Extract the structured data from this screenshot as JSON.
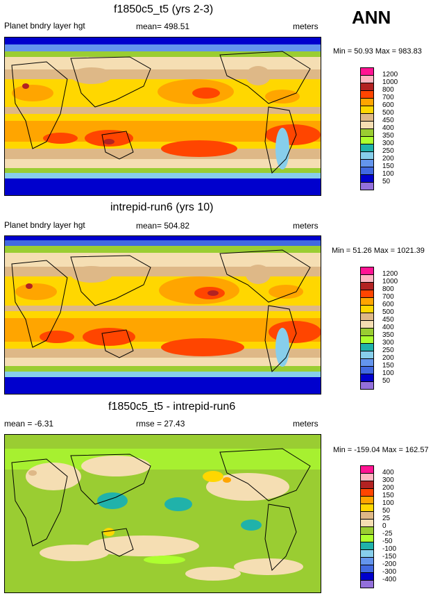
{
  "season": "ANN",
  "panels": [
    {
      "title": "f1850c5_t5 (yrs 2-3)",
      "left_label": "Planet bndry layer hgt",
      "center_label": "mean= 498.51",
      "right_label": "meters",
      "minmax": "Min =  50.93 Max = 983.83",
      "legend_levels": [
        "1200",
        "1000",
        "800",
        "700",
        "600",
        "500",
        "450",
        "400",
        "350",
        "300",
        "250",
        "200",
        "150",
        "100",
        "50"
      ],
      "legend_colors": [
        "#ff1493",
        "#ffb6c1",
        "#b22222",
        "#ff4500",
        "#ffa500",
        "#ffd700",
        "#deb887",
        "#f5deb3",
        "#9acd32",
        "#adff2f",
        "#20b2aa",
        "#87ceeb",
        "#6495ed",
        "#4169e1",
        "#0000cd",
        "#9370db"
      ]
    },
    {
      "title": "intrepid-run6 (yrs 10)",
      "left_label": "Planet bndry layer hgt",
      "center_label": "mean= 504.82",
      "right_label": "meters",
      "minmax": "Min =  51.26 Max = 1021.39",
      "legend_levels": [
        "1200",
        "1000",
        "800",
        "700",
        "600",
        "500",
        "450",
        "400",
        "350",
        "300",
        "250",
        "200",
        "150",
        "100",
        "50"
      ],
      "legend_colors": [
        "#ff1493",
        "#ffb6c1",
        "#b22222",
        "#ff4500",
        "#ffa500",
        "#ffd700",
        "#deb887",
        "#f5deb3",
        "#9acd32",
        "#adff2f",
        "#20b2aa",
        "#87ceeb",
        "#6495ed",
        "#4169e1",
        "#0000cd",
        "#9370db"
      ]
    },
    {
      "title": "f1850c5_t5 - intrepid-run6",
      "left_label": "mean =  -6.31",
      "center_label": "rmse =  27.43",
      "right_label": "meters",
      "minmax": "Min = -159.04 Max = 162.57",
      "legend_levels": [
        "400",
        "300",
        "200",
        "150",
        "100",
        "50",
        "25",
        "0",
        "-25",
        "-50",
        "-100",
        "-150",
        "-200",
        "-300",
        "-400"
      ],
      "legend_colors": [
        "#ff1493",
        "#ffb6c1",
        "#b22222",
        "#ff4500",
        "#ffa500",
        "#ffd700",
        "#deb887",
        "#f5deb3",
        "#9acd32",
        "#adff2f",
        "#20b2aa",
        "#87ceeb",
        "#6495ed",
        "#4169e1",
        "#0000cd",
        "#9370db"
      ]
    }
  ]
}
